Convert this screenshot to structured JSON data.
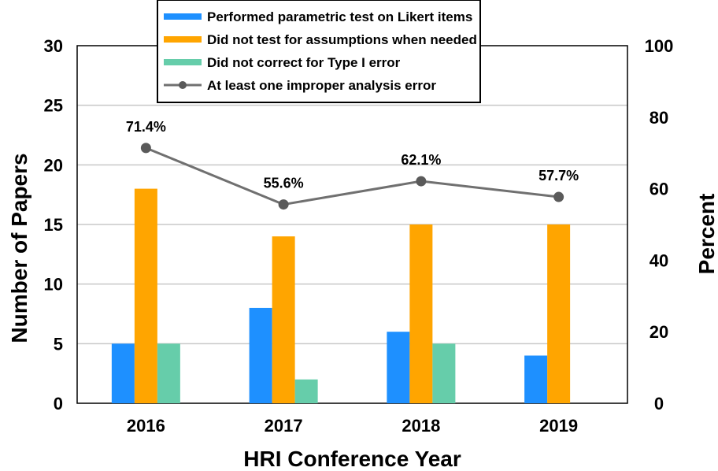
{
  "chart_data": {
    "type": "bar",
    "categories": [
      "2016",
      "2017",
      "2018",
      "2019"
    ],
    "xlabel": "HRI Conference Year",
    "ylabel": "Number of Papers",
    "y2label": "Percent",
    "ylim": [
      0,
      30
    ],
    "y2lim": [
      0,
      100
    ],
    "yticks": [
      0,
      5,
      10,
      15,
      20,
      25,
      30
    ],
    "y2ticks": [
      0,
      20,
      40,
      60,
      80,
      100
    ],
    "grid": true,
    "legend_position": "top",
    "series": [
      {
        "name": "Performed parametric test on Likert items",
        "kind": "bar",
        "axis": "left",
        "color": "#1e90ff",
        "values": [
          5,
          8,
          6,
          4
        ]
      },
      {
        "name": "Did not test for assumptions when needed",
        "kind": "bar",
        "axis": "left",
        "color": "#ffa500",
        "values": [
          18,
          14,
          15,
          15
        ]
      },
      {
        "name": "Did not correct for Type I error",
        "kind": "bar",
        "axis": "left",
        "color": "#66cdaa",
        "values": [
          5,
          2,
          5,
          0
        ]
      },
      {
        "name": "At least one improper analysis error",
        "kind": "line",
        "axis": "right",
        "color": "#707070",
        "values": [
          71.4,
          55.6,
          62.1,
          57.7
        ],
        "labels": [
          "71.4%",
          "55.6%",
          "62.1%",
          "57.7%"
        ]
      }
    ]
  }
}
